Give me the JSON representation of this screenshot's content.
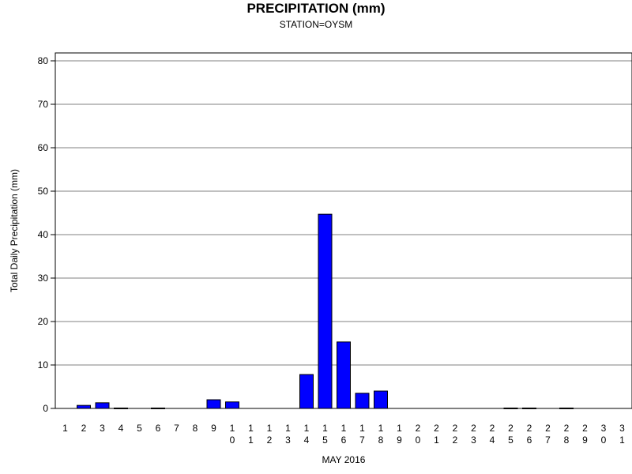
{
  "chart_data": {
    "type": "bar",
    "title": "PRECIPITATION (mm)",
    "subtitle": "STATION=OYSM",
    "xlabel": "MAY 2016",
    "ylabel": "Total Daily Precipitation (mm)",
    "ylim": [
      0,
      80
    ],
    "yticks": [
      0,
      10,
      20,
      30,
      40,
      50,
      60,
      70,
      80
    ],
    "grid": true,
    "bar_color": "#0000ff",
    "categories": [
      "1",
      "2",
      "3",
      "4",
      "5",
      "6",
      "7",
      "8",
      "9",
      "10",
      "11",
      "12",
      "13",
      "14",
      "15",
      "16",
      "17",
      "18",
      "19",
      "20",
      "21",
      "22",
      "23",
      "24",
      "25",
      "26",
      "27",
      "28",
      "29",
      "30",
      "31"
    ],
    "values": [
      0,
      0.7,
      1.3,
      0.1,
      0,
      0.1,
      0,
      0,
      2.0,
      1.5,
      0,
      0,
      0,
      7.8,
      44.7,
      15.3,
      3.5,
      4.0,
      0,
      0,
      0,
      0,
      0,
      0,
      0.1,
      0.1,
      0,
      0.1,
      0,
      0,
      0
    ]
  }
}
